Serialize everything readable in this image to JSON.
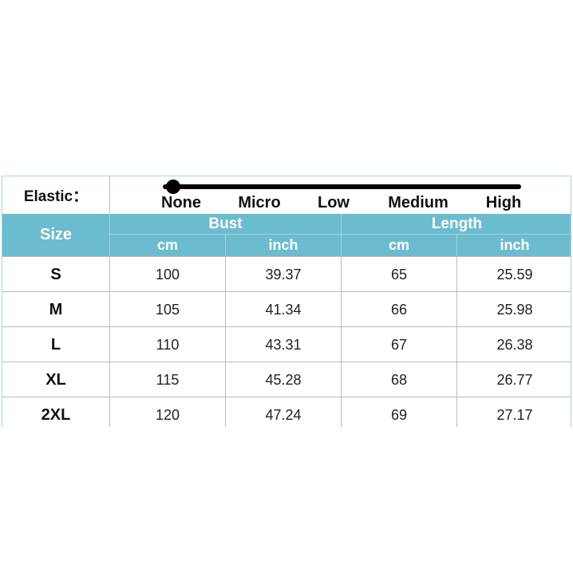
{
  "elastic": {
    "label": "Elastic：",
    "levels": [
      "None",
      "Micro",
      "Low",
      "Medium",
      "High"
    ],
    "selected": "None"
  },
  "header": {
    "size": "Size",
    "groups": [
      "Bust",
      "Length"
    ],
    "units": [
      "cm",
      "inch",
      "cm",
      "inch"
    ]
  },
  "rows": [
    {
      "size": "S",
      "values": [
        "100",
        "39.37",
        "65",
        "25.59"
      ]
    },
    {
      "size": "M",
      "values": [
        "105",
        "41.34",
        "66",
        "25.98"
      ]
    },
    {
      "size": "L",
      "values": [
        "110",
        "43.31",
        "67",
        "26.38"
      ]
    },
    {
      "size": "XL",
      "values": [
        "115",
        "45.28",
        "68",
        "26.77"
      ]
    },
    {
      "size": "2XL",
      "values": [
        "120",
        "47.24",
        "69",
        "27.17"
      ]
    }
  ],
  "colors": {
    "header_bg": "#6cbccf",
    "header_text": "#ffffff",
    "border": "#bbbbbb"
  }
}
